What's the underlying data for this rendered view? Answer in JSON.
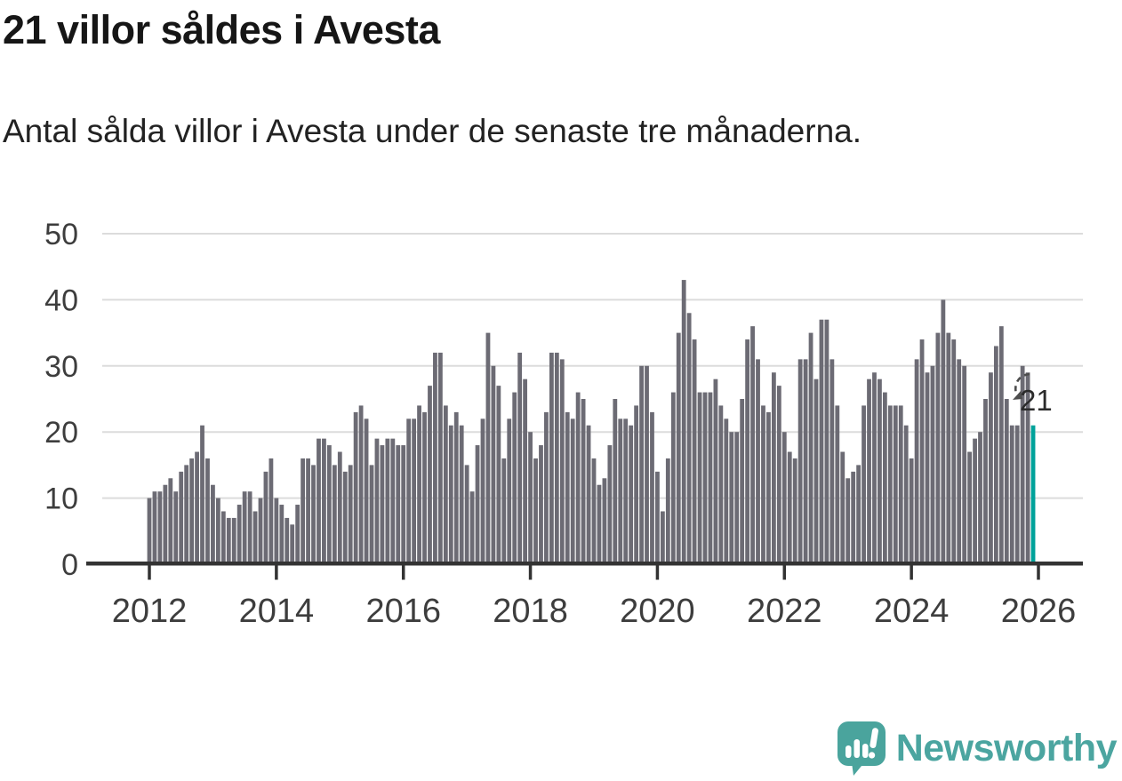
{
  "header": {
    "title": "21 villor såldes i Avesta",
    "subtitle": "Antal sålda villor i Avesta under de senaste tre månaderna."
  },
  "annotation": {
    "label": "21"
  },
  "branding": {
    "wordmark": "Newsworthy"
  },
  "colors": {
    "bar": "#6C6B74",
    "highlight": "#00A29A",
    "grid": "#DCDCDC",
    "axis": "#333333",
    "tick_label": "#3D3D3D",
    "annotation_text": "#2B2B2B",
    "logo_teal": "#4AA49D"
  },
  "chart_data": {
    "type": "bar",
    "title": "21 villor såldes i Avesta",
    "subtitle": "Antal sålda villor i Avesta under de senaste tre månaderna.",
    "xlabel": "",
    "ylabel": "",
    "x_period": "monthly",
    "x_range": [
      "2012-01",
      "2025-12"
    ],
    "ylim": [
      0,
      50
    ],
    "yticks": [
      0,
      10,
      20,
      30,
      40,
      50
    ],
    "xticks": [
      2012,
      2014,
      2016,
      2018,
      2020,
      2022,
      2024,
      2026
    ],
    "grid": "horizontal",
    "legend": "none",
    "bar_color": "#6C6B74",
    "highlight_last": true,
    "highlight_color": "#00A29A",
    "last_value": 21,
    "values_by_year": {
      "2012": [
        10,
        11,
        11,
        12,
        13,
        11,
        14,
        15,
        16,
        17,
        21,
        16
      ],
      "2013": [
        12,
        10,
        8,
        7,
        7,
        9,
        11,
        11,
        8,
        10,
        14,
        16
      ],
      "2014": [
        10,
        9,
        7,
        6,
        9,
        16,
        16,
        15,
        19,
        19,
        18,
        15
      ],
      "2015": [
        17,
        14,
        15,
        23,
        24,
        22,
        15,
        19,
        18,
        19,
        19,
        18
      ],
      "2016": [
        18,
        22,
        22,
        24,
        23,
        27,
        32,
        32,
        24,
        21,
        23,
        21
      ],
      "2017": [
        15,
        11,
        18,
        22,
        35,
        30,
        27,
        16,
        22,
        26,
        32,
        28
      ],
      "2018": [
        20,
        16,
        18,
        23,
        32,
        32,
        31,
        23,
        22,
        26,
        25,
        21
      ],
      "2019": [
        16,
        12,
        13,
        18,
        25,
        22,
        22,
        21,
        24,
        30,
        30,
        23
      ],
      "2020": [
        14,
        8,
        16,
        26,
        35,
        43,
        38,
        34,
        26,
        26,
        26,
        28
      ],
      "2021": [
        24,
        22,
        20,
        20,
        25,
        34,
        36,
        31,
        24,
        23,
        29,
        27
      ],
      "2022": [
        20,
        17,
        16,
        31,
        31,
        35,
        28,
        37,
        37,
        31,
        24,
        17
      ],
      "2023": [
        13,
        14,
        15,
        24,
        28,
        29,
        28,
        26,
        24,
        24,
        24,
        21
      ],
      "2024": [
        16,
        31,
        34,
        29,
        30,
        35,
        40,
        35,
        34,
        31,
        30,
        17
      ],
      "2025": [
        19,
        20,
        25,
        29,
        33,
        36,
        25,
        21,
        21,
        30,
        29,
        21
      ]
    }
  }
}
